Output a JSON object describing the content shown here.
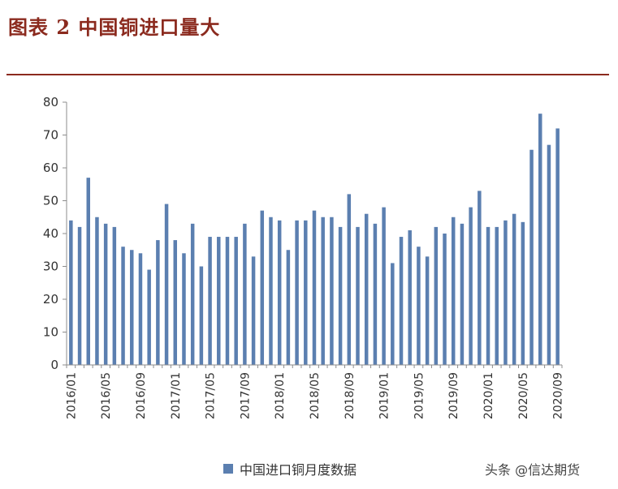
{
  "header": {
    "title": "图表 2 中国铜进口量大"
  },
  "chart_data": {
    "type": "bar",
    "categories": [
      "2016/01",
      "2016/02",
      "2016/03",
      "2016/04",
      "2016/05",
      "2016/06",
      "2016/07",
      "2016/08",
      "2016/09",
      "2016/10",
      "2016/11",
      "2016/12",
      "2017/01",
      "2017/02",
      "2017/03",
      "2017/04",
      "2017/05",
      "2017/06",
      "2017/07",
      "2017/08",
      "2017/09",
      "2017/10",
      "2017/11",
      "2017/12",
      "2018/01",
      "2018/02",
      "2018/03",
      "2018/04",
      "2018/05",
      "2018/06",
      "2018/07",
      "2018/08",
      "2018/09",
      "2018/10",
      "2018/11",
      "2018/12",
      "2019/01",
      "2019/02",
      "2019/03",
      "2019/04",
      "2019/05",
      "2019/06",
      "2019/07",
      "2019/08",
      "2019/09",
      "2019/10",
      "2019/11",
      "2019/12",
      "2020/01",
      "2020/02",
      "2020/03",
      "2020/04",
      "2020/05",
      "2020/06",
      "2020/07",
      "2020/08",
      "2020/09"
    ],
    "x_tick_labels": [
      "2016/01",
      "2016/05",
      "2016/09",
      "2017/01",
      "2017/05",
      "2017/09",
      "2018/01",
      "2018/05",
      "2018/09",
      "2019/01",
      "2019/05",
      "2019/09",
      "2020/01",
      "2020/05",
      "2020/09"
    ],
    "series": [
      {
        "name": "中国进口铜月度数据",
        "color": "#5b7fb0",
        "values": [
          44,
          42,
          57,
          45,
          43,
          42,
          36,
          35,
          34,
          29,
          38,
          49,
          38,
          34,
          43,
          30,
          39,
          39,
          39,
          39,
          43,
          33,
          47,
          45,
          44,
          35,
          44,
          44,
          47,
          45,
          45,
          42,
          52,
          42,
          46,
          43,
          48,
          31,
          39,
          41,
          36,
          33,
          42,
          40,
          45,
          43,
          48,
          53,
          42,
          42,
          44,
          46,
          43.5,
          65.5,
          76.5,
          67,
          72
        ]
      }
    ],
    "yticks": [
      0,
      10,
      20,
      30,
      40,
      50,
      60,
      70,
      80
    ],
    "ylim": [
      0,
      80
    ],
    "grid": false,
    "legend_position": "bottom-center",
    "xlabel": "",
    "ylabel": ""
  },
  "watermark": {
    "text": "头条 @信达期货"
  }
}
